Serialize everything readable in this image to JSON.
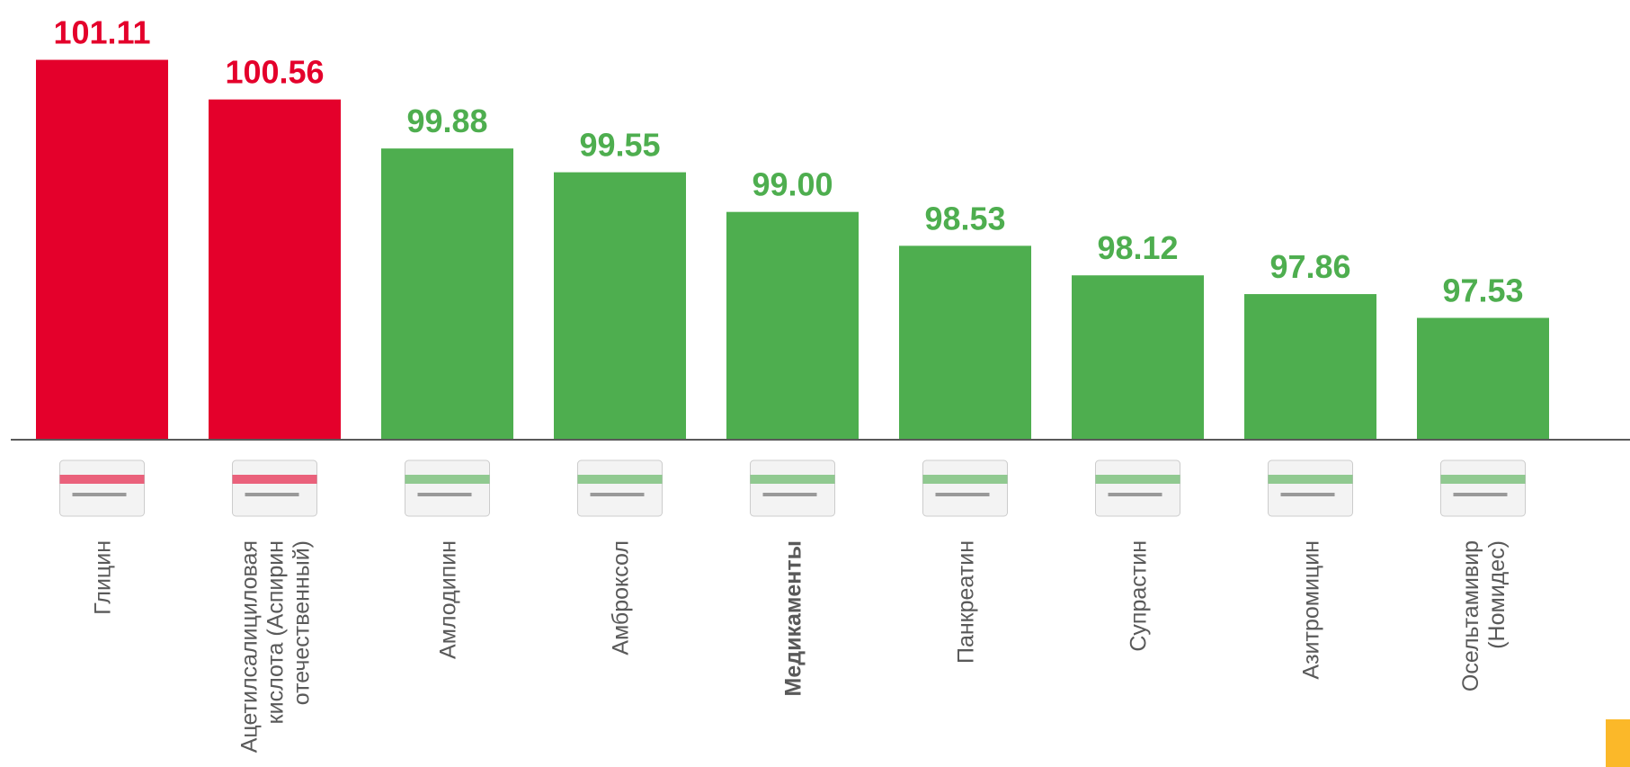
{
  "chart_data": {
    "type": "bar",
    "categories": [
      "Глицин",
      "Ацетилсалициловая\nкислота (Аспирин\nотечественный)",
      "Амлодипин",
      "Амброксол",
      "Медикаменты",
      "Панкреатин",
      "Супрастин",
      "Азитромицин",
      "Осельтамивир\n(Номидес)"
    ],
    "values": [
      101.11,
      100.56,
      99.88,
      99.55,
      99.0,
      98.53,
      98.12,
      97.86,
      97.53
    ],
    "value_labels": [
      "101.11",
      "100.56",
      "99.88",
      "99.55",
      "99.00",
      "98.53",
      "98.12",
      "97.86",
      "97.53"
    ],
    "colors": [
      "#e4002b",
      "#e4002b",
      "#4eae4f",
      "#4eae4f",
      "#4eae4f",
      "#4eae4f",
      "#4eae4f",
      "#4eae4f",
      "#4eae4f"
    ],
    "bold_category": 4,
    "ylim": [
      95.84,
      101.94
    ]
  }
}
